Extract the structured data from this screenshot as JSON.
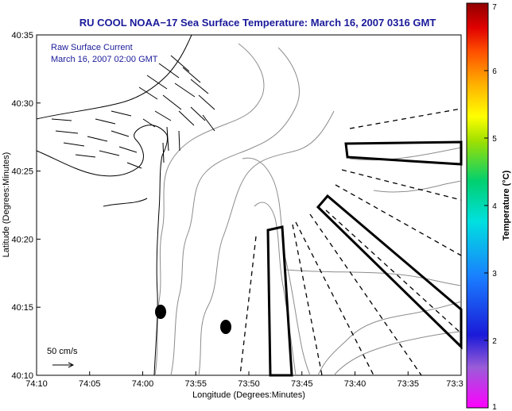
{
  "title": "RU COOL  NOAA−17  Sea Surface Temperature:  March 16, 2007 0316 GMT",
  "annotation": {
    "line1": "Raw Surface Current",
    "line2": "March 16, 2007 02:00 GMT"
  },
  "scale_label": "50 cm/s",
  "chart_data": {
    "type": "map",
    "xlabel": "Longitude (Degrees:Minutes)",
    "ylabel": "Latitude (Degrees:Minutes)",
    "x_ticks": [
      "74:10",
      "74:05",
      "74:00",
      "73:55",
      "73:50",
      "73:45",
      "73:40",
      "73:35",
      "73:3"
    ],
    "y_ticks": [
      "40:10",
      "40:15",
      "40:20",
      "40:25",
      "40:30",
      "40:35"
    ],
    "xlim": [
      "74:10",
      "73:30"
    ],
    "ylim": [
      "40:10",
      "40:35"
    ],
    "colorbar": {
      "label": "Temperature (°C)",
      "ticks": [
        "1",
        "2",
        "3",
        "4",
        "5",
        "6",
        "7"
      ],
      "range": [
        1,
        7
      ]
    },
    "grid": false
  }
}
